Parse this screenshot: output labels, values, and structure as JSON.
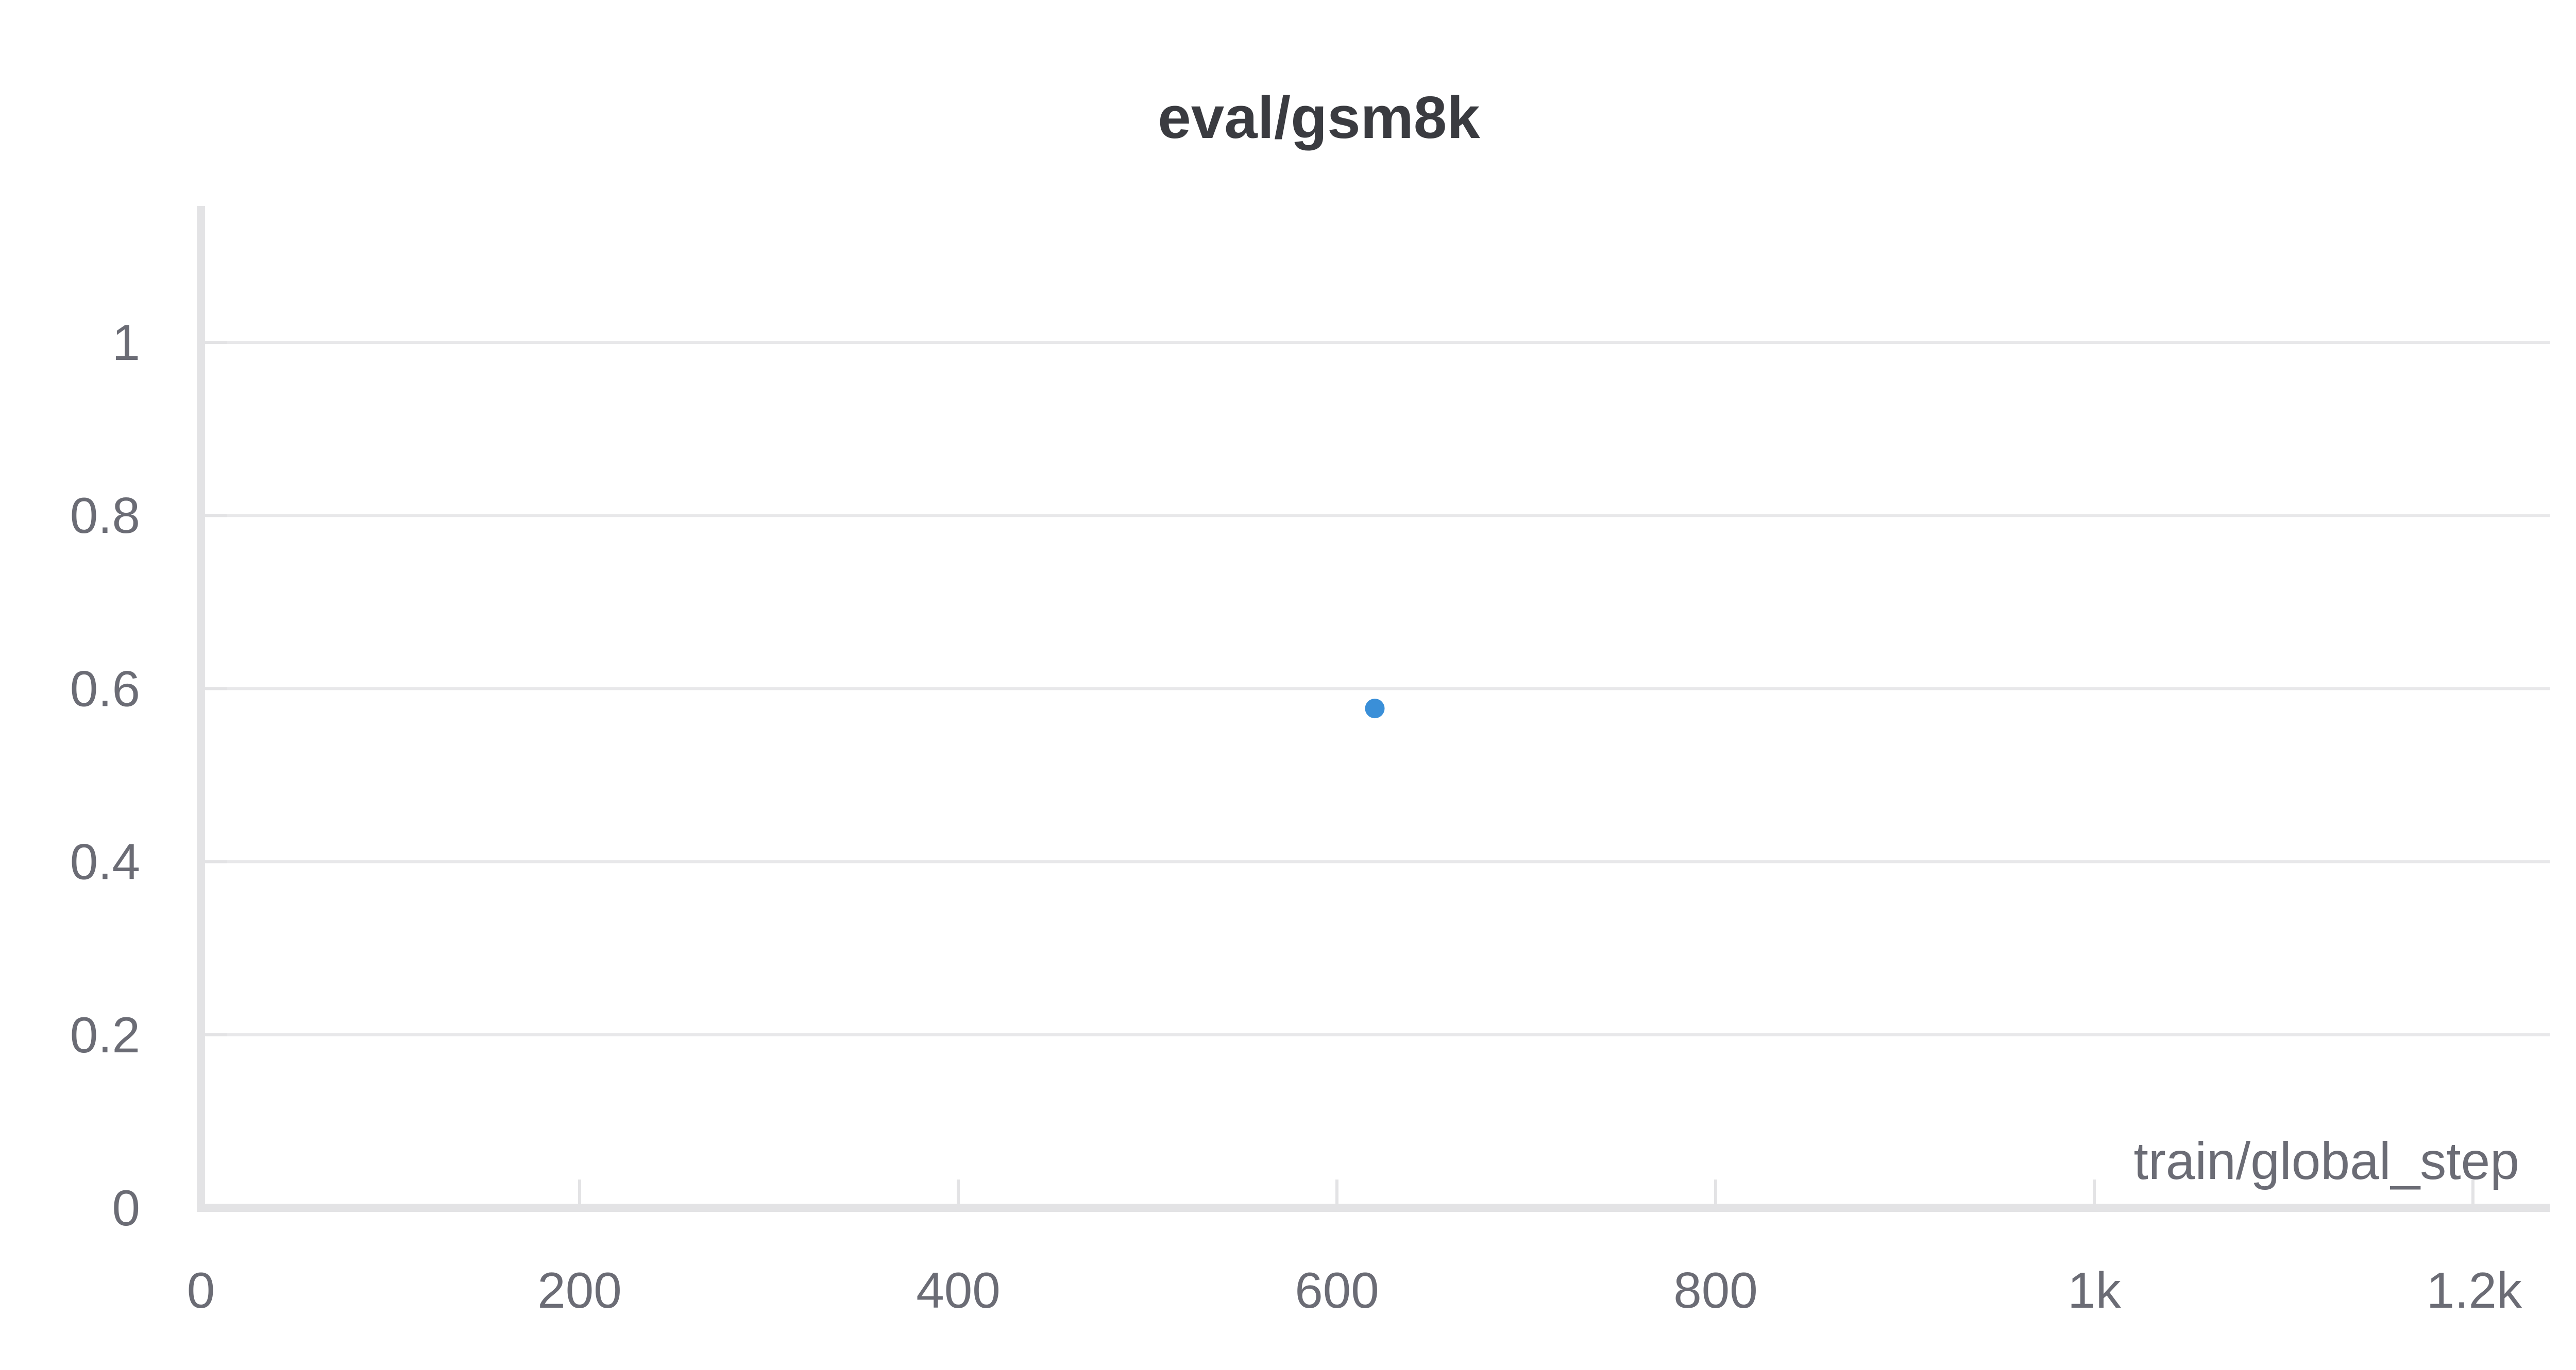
{
  "chart_data": {
    "type": "scatter",
    "title": "eval/gsm8k",
    "xlabel": "train/global_step",
    "ylabel": "",
    "xlim": [
      0,
      1240
    ],
    "ylim": [
      0,
      1.15
    ],
    "x_ticks": [
      0,
      200,
      400,
      600,
      800,
      1000,
      1200
    ],
    "x_tick_labels": [
      "0",
      "200",
      "400",
      "600",
      "800",
      "1k",
      "1.2k"
    ],
    "y_ticks": [
      0,
      0.2,
      0.4,
      0.6,
      0.8,
      1
    ],
    "y_tick_labels": [
      "0",
      "0.2",
      "0.4",
      "0.6",
      "0.8",
      "1"
    ],
    "grid": true,
    "legend": "none",
    "series": [
      {
        "color": "#3a8fd8",
        "points": [
          {
            "x": 620,
            "y": 0.577
          }
        ]
      }
    ]
  }
}
